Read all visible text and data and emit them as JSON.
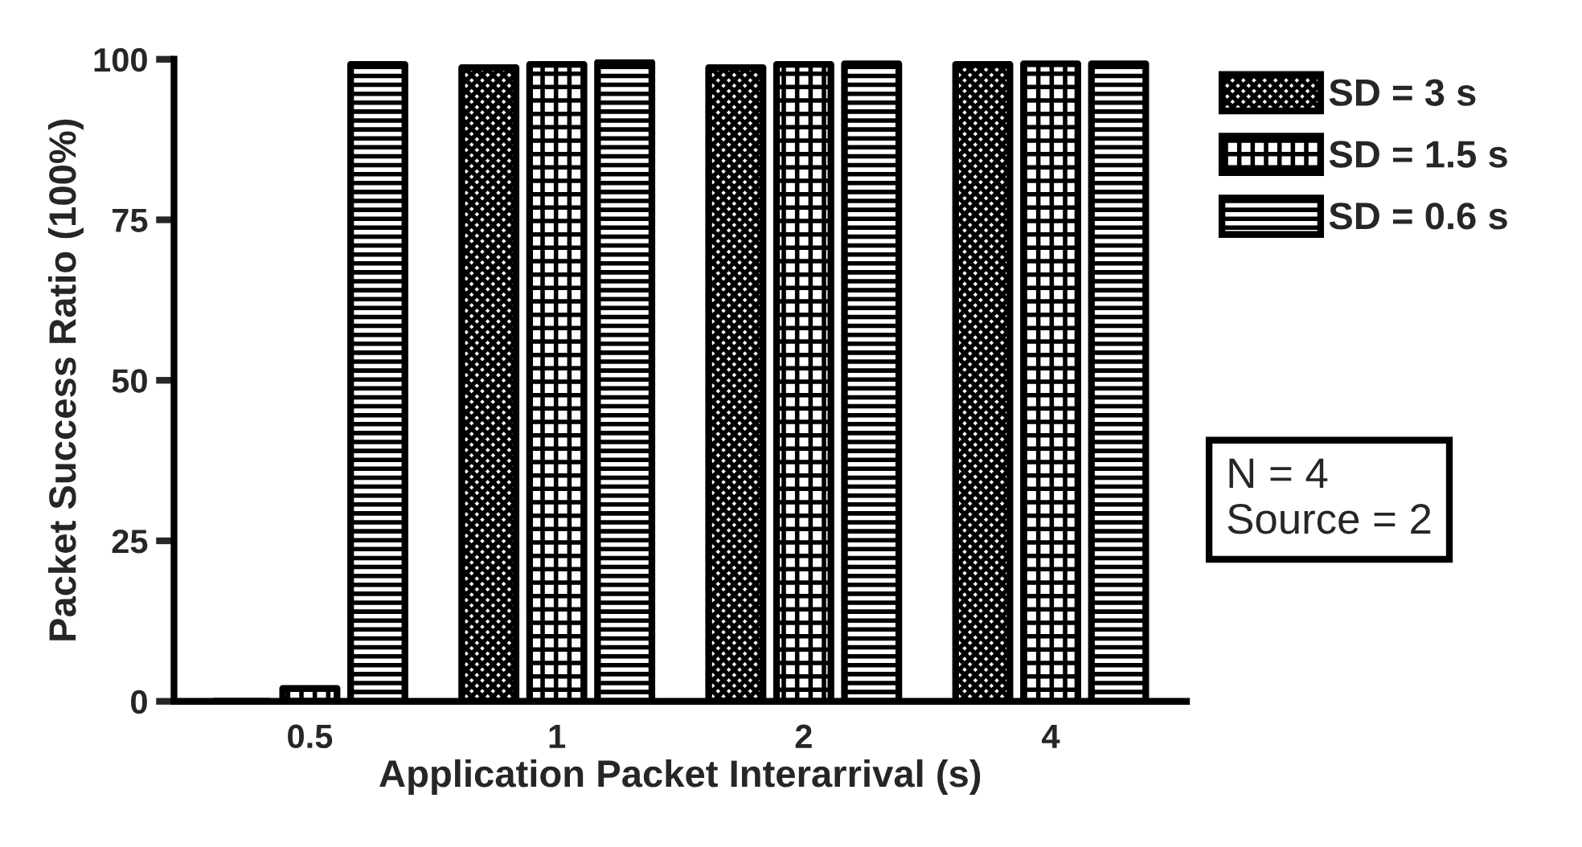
{
  "chart_data": {
    "type": "bar",
    "xlabel": "Application Packet Interarrival (s)",
    "ylabel": "Packet Success Ratio (100%)",
    "categories": [
      "0.5",
      "1",
      "2",
      "4"
    ],
    "series": [
      {
        "name": "SD = 3 s",
        "color": "#000000",
        "values": [
          0,
          98.7,
          98.7,
          99.2
        ]
      },
      {
        "name": "SD = 1.5 s",
        "color": "#000000",
        "values": [
          2,
          99.2,
          99.2,
          99.3
        ]
      },
      {
        "name": "SD = 0.6 s",
        "color": "#000000",
        "values": [
          99.2,
          99.5,
          99.3,
          99.3
        ]
      }
    ],
    "ylim": [
      0,
      100
    ],
    "yticks": [
      0,
      25,
      50,
      75,
      100
    ],
    "grid": false,
    "legend": "top right",
    "annotations": [
      "N = 4\nSource = 2"
    ]
  }
}
